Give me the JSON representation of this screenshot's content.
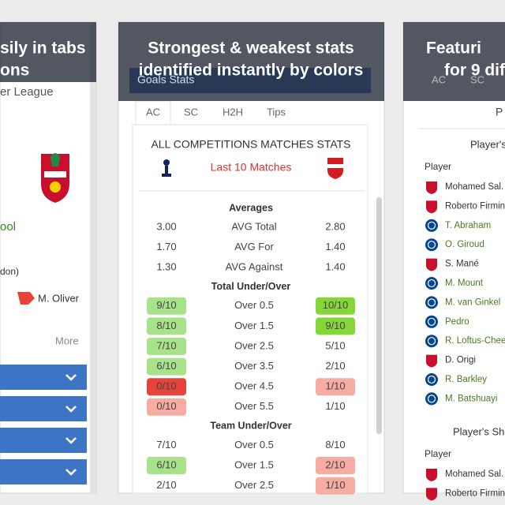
{
  "left_panel": {
    "caption": [
      "sily in tabs",
      "ons"
    ],
    "league": "er League",
    "team": "ool",
    "venue": "don)",
    "referee": "M. Oliver",
    "more": "More"
  },
  "middle_panel": {
    "caption": [
      "Strongest & weakest stats",
      "identified instantly by colors"
    ],
    "header": "Goals Stats",
    "tabs": [
      "AC",
      "SC",
      "H2H",
      "Tips"
    ],
    "title": "ALL COMPETITIONS MATCHES STATS",
    "subtitle": "Last 10 Matches",
    "sections": [
      {
        "name": "Averages",
        "rows": [
          {
            "left": "3.00",
            "label": "AVG Total",
            "right": "2.80"
          },
          {
            "left": "1.70",
            "label": "AVG For",
            "right": "1.40"
          },
          {
            "left": "1.30",
            "label": "AVG Against",
            "right": "1.40"
          }
        ]
      },
      {
        "name": "Total Under/Over",
        "rows": [
          {
            "left": "9/10",
            "left_color": "#a8e28a",
            "label": "Over 0.5",
            "right": "10/10",
            "right_color": "#86d63a"
          },
          {
            "left": "8/10",
            "left_color": "#a8e28a",
            "label": "Over 1.5",
            "right": "9/10",
            "right_color": "#86d63a"
          },
          {
            "left": "7/10",
            "left_color": "#a8e28a",
            "label": "Over 2.5",
            "right": "5/10"
          },
          {
            "left": "6/10",
            "left_color": "#a8e28a",
            "label": "Over 3.5",
            "right": "2/10"
          },
          {
            "left": "0/10",
            "left_color": "#e8433b",
            "label": "Over 4.5",
            "right": "1/10",
            "right_color": "#f7aca2"
          },
          {
            "left": "0/10",
            "left_color": "#f7aca2",
            "label": "Over 5.5",
            "right": "1/10"
          }
        ]
      },
      {
        "name": "Team Under/Over",
        "rows": [
          {
            "left": "7/10",
            "label": "Over 0.5",
            "right": "8/10"
          },
          {
            "left": "6/10",
            "left_color": "#a8e28a",
            "label": "Over 1.5",
            "right": "2/10",
            "right_color": "#f7aca2"
          },
          {
            "left": "2/10",
            "label": "Over 2.5",
            "right": "1/10",
            "right_color": "#f7aca2"
          }
        ]
      }
    ]
  },
  "right_panel": {
    "caption": [
      "Featuri",
      "for 9 dif"
    ],
    "tabs": [
      "AC",
      "SC"
    ],
    "header": "P",
    "section_title": "Player's",
    "column": "Player",
    "players": [
      {
        "name": "Mohamed Sal.",
        "color": "#333333"
      },
      {
        "name": "Roberto Firmin",
        "color": "#333333"
      },
      {
        "name": "T. Abraham",
        "color": "#4b7a22"
      },
      {
        "name": "O. Giroud",
        "color": "#4b7a22"
      },
      {
        "name": "S. Mané",
        "color": "#333333"
      },
      {
        "name": "M. Mount",
        "color": "#4b7a22"
      },
      {
        "name": "M. van Ginkel",
        "color": "#4b7a22"
      },
      {
        "name": "Pedro",
        "color": "#4b7a22"
      },
      {
        "name": "R. Loftus-Chee",
        "color": "#4b7a22"
      },
      {
        "name": "D. Origi",
        "color": "#333333"
      },
      {
        "name": "R. Barkley",
        "color": "#4b7a22"
      },
      {
        "name": "M. Batshuayi",
        "color": "#4b7a22"
      }
    ],
    "section_title_2": "Player's Sho",
    "column_2": "Player",
    "players_2": [
      {
        "name": "Mohamed Sal.",
        "color": "#333333"
      },
      {
        "name": "Roberto Firmin",
        "color": "#333333"
      }
    ]
  }
}
